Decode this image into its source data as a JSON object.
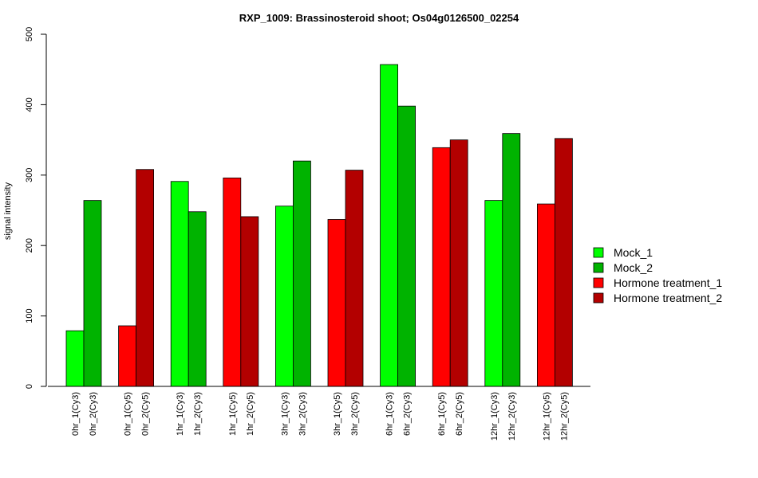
{
  "chart_data": {
    "type": "bar",
    "title": "RXP_1009: Brassinosteroid shoot; Os04g0126500_02254",
    "xlabel": "",
    "ylabel": "signal intensity",
    "ylim": [
      0,
      500
    ],
    "yticks": [
      0,
      100,
      200,
      300,
      400,
      500
    ],
    "grid": false,
    "legend_position": "right",
    "legend": [
      {
        "label": "Mock_1",
        "color": "#00ff00"
      },
      {
        "label": "Mock_2",
        "color": "#00b300"
      },
      {
        "label": "Hormone treatment_1",
        "color": "#ff0000"
      },
      {
        "label": "Hormone treatment_2",
        "color": "#b30000"
      }
    ],
    "groups": [
      {
        "bars": [
          {
            "label": "0hr_1(Cy3)",
            "value": 79,
            "color": "#00ff00"
          },
          {
            "label": "0hr_2(Cy3)",
            "value": 264,
            "color": "#00b300"
          }
        ]
      },
      {
        "bars": [
          {
            "label": "0hr_1(Cy5)",
            "value": 86,
            "color": "#ff0000"
          },
          {
            "label": "0hr_2(Cy5)",
            "value": 308,
            "color": "#b30000"
          }
        ]
      },
      {
        "bars": [
          {
            "label": "1hr_1(Cy3)",
            "value": 291,
            "color": "#00ff00"
          },
          {
            "label": "1hr_2(Cy3)",
            "value": 248,
            "color": "#00b300"
          }
        ]
      },
      {
        "bars": [
          {
            "label": "1hr_1(Cy5)",
            "value": 296,
            "color": "#ff0000"
          },
          {
            "label": "1hr_2(Cy5)",
            "value": 241,
            "color": "#b30000"
          }
        ]
      },
      {
        "bars": [
          {
            "label": "3hr_1(Cy3)",
            "value": 256,
            "color": "#00ff00"
          },
          {
            "label": "3hr_2(Cy3)",
            "value": 320,
            "color": "#00b300"
          }
        ]
      },
      {
        "bars": [
          {
            "label": "3hr_1(Cy5)",
            "value": 237,
            "color": "#ff0000"
          },
          {
            "label": "3hr_2(Cy5)",
            "value": 307,
            "color": "#b30000"
          }
        ]
      },
      {
        "bars": [
          {
            "label": "6hr_1(Cy3)",
            "value": 457,
            "color": "#00ff00"
          },
          {
            "label": "6hr_2(Cy3)",
            "value": 398,
            "color": "#00b300"
          }
        ]
      },
      {
        "bars": [
          {
            "label": "6hr_1(Cy5)",
            "value": 339,
            "color": "#ff0000"
          },
          {
            "label": "6hr_2(Cy5)",
            "value": 350,
            "color": "#b30000"
          }
        ]
      },
      {
        "bars": [
          {
            "label": "12hr_1(Cy3)",
            "value": 264,
            "color": "#00ff00"
          },
          {
            "label": "12hr_2(Cy3)",
            "value": 359,
            "color": "#00b300"
          }
        ]
      },
      {
        "bars": [
          {
            "label": "12hr_1(Cy5)",
            "value": 259,
            "color": "#ff0000"
          },
          {
            "label": "12hr_2(Cy5)",
            "value": 352,
            "color": "#b30000"
          }
        ]
      }
    ]
  }
}
